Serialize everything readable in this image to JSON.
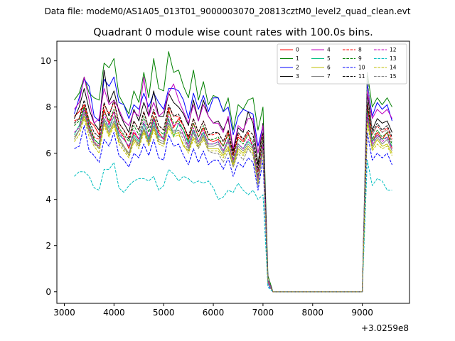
{
  "suptitle": "Data file: modeM0/AS1A05_013T01_9000003070_20813cztM0_level2_quad_clean.evt",
  "chart_data": {
    "type": "line",
    "title": "Quadrant 0 module wise count rates with 100.0s bins.",
    "xlabel": "",
    "ylabel": "",
    "x_offset_label": "+3.0259e8",
    "xlim": [
      2850,
      9950
    ],
    "ylim": [
      -0.5,
      10.85
    ],
    "xticks": [
      3000,
      4000,
      5000,
      6000,
      7000,
      8000,
      9000
    ],
    "yticks": [
      0,
      2,
      4,
      6,
      8,
      10
    ],
    "legend_position": "top-right",
    "x": [
      3200,
      3300,
      3400,
      3500,
      3600,
      3700,
      3800,
      3900,
      4000,
      4100,
      4200,
      4300,
      4400,
      4500,
      4600,
      4700,
      4800,
      4900,
      5000,
      5100,
      5200,
      5300,
      5400,
      5500,
      5600,
      5700,
      5800,
      5900,
      6000,
      6100,
      6200,
      6300,
      6400,
      6500,
      6600,
      6700,
      6800,
      6900,
      7000,
      7100,
      7200,
      7300,
      7400,
      7500,
      7600,
      7700,
      7800,
      7900,
      8000,
      8100,
      8200,
      8300,
      8400,
      8500,
      8600,
      8700,
      8800,
      8900,
      9000,
      9100,
      9200,
      9300,
      9400,
      9500,
      9600
    ],
    "series": [
      {
        "name": "0",
        "color": "#ff0000",
        "dash": "solid",
        "values": [
          7.6,
          7.8,
          8.1,
          7.4,
          7.2,
          6.8,
          7.9,
          7.3,
          7.8,
          7.0,
          6.7,
          6.2,
          6.9,
          6.6,
          7.0,
          6.5,
          7.6,
          6.9,
          6.6,
          7.9,
          7.1,
          7.5,
          7.2,
          6.6,
          7.3,
          6.7,
          7.1,
          6.6,
          6.5,
          6.6,
          6.3,
          6.9,
          5.9,
          6.7,
          6.5,
          6.9,
          6.2,
          4.8,
          6.4,
          0.4,
          0.0,
          0.0,
          0.0,
          0.0,
          0.0,
          0.0,
          0.0,
          0.0,
          0.0,
          0.0,
          0.0,
          0.0,
          0.0,
          0.0,
          0.0,
          0.0,
          0.0,
          0.0,
          0.0,
          8.2,
          6.5,
          6.9,
          6.6,
          6.9,
          6.2
        ]
      },
      {
        "name": "1",
        "color": "#008000",
        "dash": "solid",
        "values": [
          8.3,
          8.6,
          9.3,
          8.6,
          8.4,
          8.3,
          9.9,
          9.7,
          10.1,
          8.5,
          8.1,
          7.7,
          8.7,
          8.2,
          9.5,
          8.4,
          10.1,
          8.8,
          8.7,
          10.4,
          9.5,
          9.6,
          8.9,
          8.4,
          9.6,
          8.3,
          9.1,
          8.1,
          8.5,
          8.4,
          7.8,
          8.4,
          7.0,
          8.1,
          7.9,
          8.3,
          8.4,
          7.0,
          8.0,
          0.7,
          0.0,
          0.0,
          0.0,
          0.0,
          0.0,
          0.0,
          0.0,
          0.0,
          0.0,
          0.0,
          0.0,
          0.0,
          0.0,
          0.0,
          0.0,
          0.0,
          0.0,
          0.0,
          0.0,
          9.5,
          8.0,
          8.4,
          8.1,
          8.4,
          8.0
        ]
      },
      {
        "name": "2",
        "color": "#0000ff",
        "dash": "solid",
        "values": [
          7.7,
          8.4,
          9.2,
          8.9,
          7.6,
          7.4,
          9.2,
          8.9,
          9.3,
          8.2,
          8.1,
          7.5,
          8.1,
          7.9,
          8.6,
          8.0,
          8.6,
          8.2,
          7.9,
          8.8,
          8.8,
          8.7,
          8.3,
          7.5,
          8.6,
          7.9,
          8.5,
          7.8,
          8.4,
          8.4,
          7.8,
          8.0,
          6.8,
          7.6,
          7.9,
          7.8,
          7.7,
          6.3,
          7.2,
          0.5,
          0.0,
          0.0,
          0.0,
          0.0,
          0.0,
          0.0,
          0.0,
          0.0,
          0.0,
          0.0,
          0.0,
          0.0,
          0.0,
          0.0,
          0.0,
          0.0,
          0.0,
          0.0,
          0.0,
          9.0,
          7.6,
          8.2,
          7.9,
          8.1,
          7.4
        ]
      },
      {
        "name": "3",
        "color": "#000000",
        "dash": "solid",
        "values": [
          7.5,
          8.0,
          8.8,
          7.9,
          7.3,
          7.0,
          9.6,
          8.2,
          8.7,
          7.8,
          7.3,
          6.9,
          7.9,
          7.4,
          8.2,
          7.6,
          8.7,
          7.6,
          7.6,
          8.6,
          8.2,
          8.0,
          7.7,
          7.2,
          8.3,
          7.4,
          8.3,
          7.6,
          7.3,
          7.4,
          7.0,
          7.5,
          6.1,
          7.1,
          6.9,
          7.8,
          7.3,
          5.5,
          7.3,
          0.5,
          0.0,
          0.0,
          0.0,
          0.0,
          0.0,
          0.0,
          0.0,
          0.0,
          0.0,
          0.0,
          0.0,
          0.0,
          0.0,
          0.0,
          0.0,
          0.0,
          0.0,
          0.0,
          0.0,
          8.6,
          7.0,
          7.5,
          7.3,
          7.4,
          6.9
        ]
      },
      {
        "name": "4",
        "color": "#bf00bf",
        "dash": "solid",
        "values": [
          7.9,
          8.2,
          9.3,
          8.3,
          7.3,
          7.5,
          8.8,
          8.1,
          8.3,
          7.9,
          7.4,
          7.2,
          7.8,
          7.6,
          9.3,
          7.6,
          8.2,
          7.6,
          7.8,
          8.6,
          9.0,
          8.3,
          7.8,
          7.3,
          8.1,
          7.4,
          8.1,
          7.6,
          7.3,
          7.3,
          6.9,
          7.6,
          6.2,
          7.2,
          7.0,
          7.5,
          7.5,
          6.0,
          7.2,
          0.5,
          0.0,
          0.0,
          0.0,
          0.0,
          0.0,
          0.0,
          0.0,
          0.0,
          0.0,
          0.0,
          0.0,
          0.0,
          0.0,
          0.0,
          0.0,
          0.0,
          0.0,
          0.0,
          0.0,
          8.7,
          7.5,
          7.9,
          7.7,
          7.9,
          7.5
        ]
      },
      {
        "name": "5",
        "color": "#00bf80",
        "dash": "solid",
        "values": [
          6.8,
          7.2,
          8.0,
          7.3,
          6.6,
          6.4,
          7.5,
          7.1,
          7.6,
          6.8,
          6.6,
          6.3,
          6.8,
          6.5,
          7.3,
          6.6,
          7.4,
          6.7,
          6.7,
          7.5,
          6.7,
          7.3,
          7.0,
          6.4,
          7.0,
          6.5,
          6.9,
          6.4,
          6.4,
          6.5,
          6.1,
          6.6,
          5.6,
          6.4,
          6.2,
          6.5,
          6.3,
          4.9,
          6.4,
          0.4,
          0.0,
          0.0,
          0.0,
          0.0,
          0.0,
          0.0,
          0.0,
          0.0,
          0.0,
          0.0,
          0.0,
          0.0,
          0.0,
          0.0,
          0.0,
          0.0,
          0.0,
          0.0,
          0.0,
          7.8,
          6.5,
          6.8,
          6.6,
          6.7,
          6.3
        ]
      },
      {
        "name": "6",
        "color": "#bfbf00",
        "dash": "solid",
        "values": [
          6.6,
          7.0,
          7.6,
          6.9,
          6.5,
          6.2,
          7.3,
          6.8,
          7.3,
          6.5,
          6.3,
          5.9,
          6.6,
          6.3,
          7.0,
          6.4,
          7.1,
          6.5,
          6.4,
          7.2,
          6.8,
          6.9,
          6.3,
          6.1,
          6.7,
          6.3,
          6.7,
          6.2,
          6.2,
          6.2,
          5.9,
          6.3,
          5.5,
          6.2,
          6.0,
          6.3,
          6.1,
          4.7,
          6.2,
          0.4,
          0.0,
          0.0,
          0.0,
          0.0,
          0.0,
          0.0,
          0.0,
          0.0,
          0.0,
          0.0,
          0.0,
          0.0,
          0.0,
          0.0,
          0.0,
          0.0,
          0.0,
          0.0,
          0.0,
          7.5,
          6.2,
          6.6,
          6.3,
          6.4,
          6.0
        ]
      },
      {
        "name": "7",
        "color": "#808080",
        "dash": "solid",
        "values": [
          6.7,
          7.0,
          7.7,
          7.1,
          6.4,
          6.3,
          7.4,
          6.9,
          7.4,
          6.7,
          6.3,
          6.0,
          6.7,
          6.4,
          7.1,
          6.5,
          7.2,
          6.6,
          6.5,
          7.3,
          6.9,
          7.0,
          6.8,
          6.2,
          6.9,
          6.4,
          6.8,
          6.3,
          6.3,
          6.4,
          6.0,
          6.5,
          5.6,
          6.3,
          6.1,
          6.4,
          6.2,
          4.8,
          6.3,
          0.4,
          0.0,
          0.0,
          0.0,
          0.0,
          0.0,
          0.0,
          0.0,
          0.0,
          0.0,
          0.0,
          0.0,
          0.0,
          0.0,
          0.0,
          0.0,
          0.0,
          0.0,
          0.0,
          0.0,
          7.6,
          6.3,
          6.7,
          6.4,
          6.6,
          6.1
        ]
      },
      {
        "name": "8",
        "color": "#ff0000",
        "dash": "dashed",
        "values": [
          7.4,
          7.5,
          8.1,
          7.2,
          6.7,
          6.6,
          8.1,
          7.7,
          8.2,
          7.3,
          7.0,
          6.7,
          7.4,
          7.0,
          7.8,
          7.1,
          7.8,
          7.2,
          7.0,
          8.0,
          7.6,
          7.6,
          7.2,
          6.7,
          7.5,
          6.9,
          7.4,
          6.8,
          6.8,
          6.9,
          6.5,
          7.0,
          6.0,
          6.8,
          6.6,
          7.0,
          6.8,
          5.2,
          6.8,
          0.4,
          0.0,
          0.0,
          0.0,
          0.0,
          0.0,
          0.0,
          0.0,
          0.0,
          0.0,
          0.0,
          0.0,
          0.0,
          0.0,
          0.0,
          0.0,
          0.0,
          0.0,
          0.0,
          0.0,
          8.1,
          6.8,
          7.2,
          6.9,
          7.1,
          6.6
        ]
      },
      {
        "name": "9",
        "color": "#008000",
        "dash": "dashed",
        "values": [
          7.2,
          7.4,
          8.0,
          7.1,
          6.6,
          6.4,
          7.8,
          7.4,
          7.9,
          7.1,
          6.8,
          6.5,
          7.2,
          6.8,
          7.6,
          6.9,
          7.6,
          7.0,
          6.8,
          7.8,
          7.3,
          7.4,
          7.0,
          6.5,
          7.3,
          6.7,
          7.2,
          6.6,
          6.6,
          6.7,
          6.3,
          6.8,
          5.8,
          6.6,
          6.4,
          6.8,
          6.5,
          5.0,
          6.6,
          0.4,
          0.0,
          0.0,
          0.0,
          0.0,
          0.0,
          0.0,
          0.0,
          0.0,
          0.0,
          0.0,
          0.0,
          0.0,
          0.0,
          0.0,
          0.0,
          0.0,
          0.0,
          0.0,
          0.0,
          7.9,
          6.6,
          7.0,
          6.7,
          6.9,
          6.4
        ]
      },
      {
        "name": "10",
        "color": "#0000ff",
        "dash": "dashed",
        "values": [
          6.2,
          6.3,
          7.2,
          6.1,
          5.9,
          5.6,
          6.6,
          6.3,
          6.9,
          5.9,
          5.7,
          5.4,
          6.0,
          5.8,
          6.4,
          5.9,
          6.6,
          5.8,
          5.7,
          6.8,
          6.3,
          6.4,
          5.9,
          5.5,
          6.2,
          5.6,
          6.1,
          5.5,
          5.7,
          5.7,
          5.3,
          5.8,
          5.0,
          5.6,
          5.4,
          5.8,
          5.6,
          4.4,
          5.7,
          0.3,
          0.0,
          0.0,
          0.0,
          0.0,
          0.0,
          0.0,
          0.0,
          0.0,
          0.0,
          0.0,
          0.0,
          0.0,
          0.0,
          0.0,
          0.0,
          0.0,
          0.0,
          0.0,
          0.0,
          6.9,
          5.7,
          6.0,
          5.8,
          6.0,
          5.5
        ]
      },
      {
        "name": "11",
        "color": "#000000",
        "dash": "dashed",
        "values": [
          7.3,
          7.5,
          8.3,
          7.4,
          6.9,
          6.7,
          8.2,
          7.6,
          8.3,
          7.3,
          7.0,
          6.6,
          7.4,
          7.0,
          7.8,
          7.1,
          7.9,
          7.2,
          7.0,
          8.1,
          7.6,
          7.7,
          7.2,
          6.7,
          7.5,
          6.9,
          7.4,
          6.8,
          6.9,
          6.9,
          6.5,
          7.0,
          6.0,
          6.9,
          6.6,
          7.0,
          6.8,
          5.3,
          6.9,
          0.4,
          0.0,
          0.0,
          0.0,
          0.0,
          0.0,
          0.0,
          0.0,
          0.0,
          0.0,
          0.0,
          0.0,
          0.0,
          0.0,
          0.0,
          0.0,
          0.0,
          0.0,
          0.0,
          0.0,
          8.2,
          6.9,
          7.3,
          7.0,
          7.2,
          6.7
        ]
      },
      {
        "name": "12",
        "color": "#bf00bf",
        "dash": "dashed",
        "values": [
          6.9,
          7.1,
          7.9,
          7.0,
          6.5,
          6.3,
          7.7,
          7.2,
          7.8,
          6.9,
          6.6,
          6.3,
          7.0,
          6.6,
          7.4,
          6.7,
          7.5,
          6.8,
          6.6,
          7.6,
          7.2,
          7.3,
          6.8,
          6.3,
          7.1,
          6.5,
          7.0,
          6.4,
          6.4,
          6.5,
          6.1,
          6.6,
          5.7,
          6.4,
          6.2,
          6.6,
          6.4,
          4.9,
          6.4,
          0.4,
          0.0,
          0.0,
          0.0,
          0.0,
          0.0,
          0.0,
          0.0,
          0.0,
          0.0,
          0.0,
          0.0,
          0.0,
          0.0,
          0.0,
          0.0,
          0.0,
          0.0,
          0.0,
          0.0,
          7.7,
          6.4,
          6.8,
          6.5,
          6.7,
          6.2
        ]
      },
      {
        "name": "13",
        "color": "#00bfbf",
        "dash": "dashed",
        "values": [
          5.0,
          5.2,
          5.2,
          5.0,
          4.5,
          4.4,
          5.3,
          5.3,
          5.6,
          4.5,
          4.3,
          4.6,
          4.8,
          4.9,
          4.9,
          4.8,
          5.0,
          4.4,
          4.6,
          5.3,
          5.1,
          4.8,
          5.0,
          4.9,
          4.7,
          4.8,
          4.7,
          4.8,
          4.5,
          4.0,
          4.1,
          4.4,
          4.3,
          4.7,
          4.4,
          4.2,
          4.4,
          4.0,
          4.2,
          0.2,
          0.0,
          0.0,
          0.0,
          0.0,
          0.0,
          0.0,
          0.0,
          0.0,
          0.0,
          0.0,
          0.0,
          0.0,
          0.0,
          0.0,
          0.0,
          0.0,
          0.0,
          0.0,
          0.0,
          5.7,
          4.6,
          4.9,
          4.8,
          4.4,
          4.4
        ]
      },
      {
        "name": "14",
        "color": "#bfbf00",
        "dash": "dashed",
        "values": [
          6.5,
          6.8,
          7.5,
          6.7,
          6.3,
          6.0,
          7.2,
          6.7,
          7.2,
          6.4,
          6.1,
          5.8,
          6.5,
          6.2,
          6.9,
          6.3,
          7.0,
          6.4,
          6.3,
          7.1,
          6.7,
          6.8,
          6.4,
          6.0,
          6.6,
          6.2,
          6.6,
          6.1,
          6.1,
          6.1,
          5.8,
          6.2,
          5.4,
          6.1,
          5.9,
          6.2,
          6.0,
          4.7,
          6.1,
          0.4,
          0.0,
          0.0,
          0.0,
          0.0,
          0.0,
          0.0,
          0.0,
          0.0,
          0.0,
          0.0,
          0.0,
          0.0,
          0.0,
          0.0,
          0.0,
          0.0,
          0.0,
          0.0,
          0.0,
          7.3,
          6.1,
          6.4,
          6.2,
          6.3,
          5.9
        ]
      },
      {
        "name": "15",
        "color": "#808080",
        "dash": "dashed",
        "values": [
          6.6,
          7.0,
          7.8,
          6.9,
          6.4,
          6.2,
          7.5,
          7.0,
          7.6,
          6.6,
          6.2,
          5.9,
          6.7,
          6.3,
          7.1,
          6.4,
          7.3,
          6.5,
          6.4,
          7.4,
          7.0,
          7.0,
          6.6,
          6.1,
          6.9,
          6.2,
          6.8,
          6.1,
          6.0,
          6.0,
          5.6,
          6.1,
          5.4,
          6.0,
          5.7,
          6.2,
          5.9,
          4.6,
          6.1,
          0.4,
          0.0,
          0.0,
          0.0,
          0.0,
          0.0,
          0.0,
          0.0,
          0.0,
          0.0,
          0.0,
          0.0,
          0.0,
          0.0,
          0.0,
          0.0,
          0.0,
          0.0,
          0.0,
          0.0,
          9.5,
          6.8,
          7.2,
          6.9,
          7.0,
          6.5
        ]
      }
    ]
  }
}
